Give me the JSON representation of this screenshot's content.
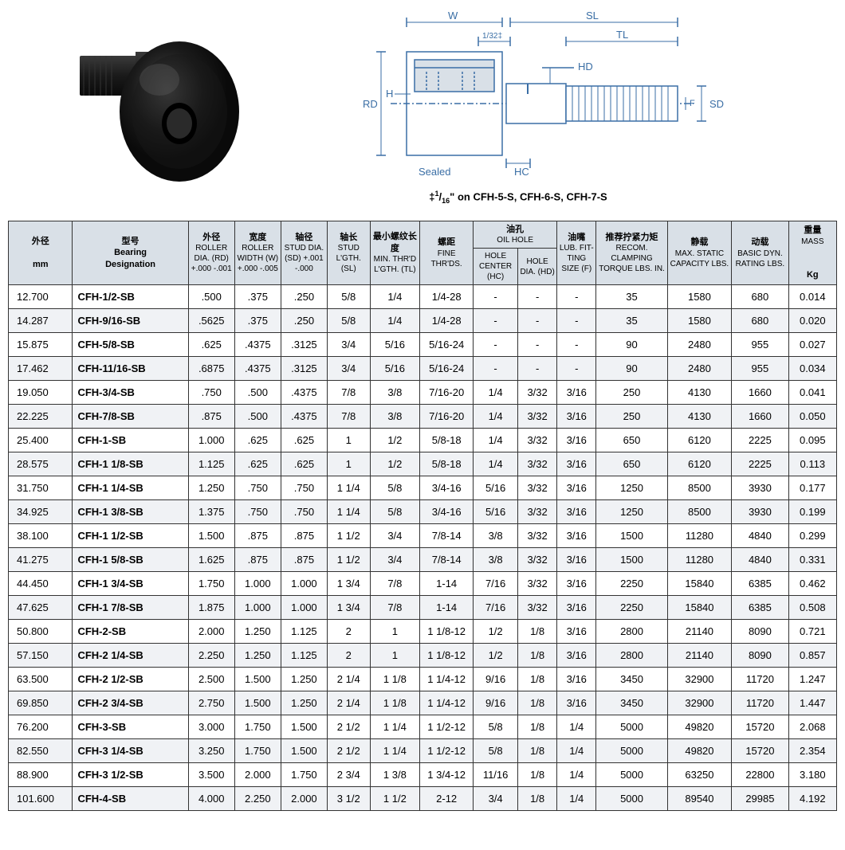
{
  "diagram": {
    "labels": {
      "W": "W",
      "SL": "SL",
      "TL": "TL",
      "RD": "RD",
      "H": "H",
      "HD": "HD",
      "SD": "SD",
      "F": "F",
      "HC": "HC",
      "Sealed": "Sealed",
      "tol": "1/32‡"
    },
    "note": "‡1/16\" on CFH-5-S, CFH-6-S, CFH-7-S",
    "line_color": "#3a6ea5",
    "text_color": "#3a6ea5"
  },
  "table": {
    "headers": {
      "od_cn": "外径",
      "od_unit": "mm",
      "des_cn": "型号",
      "des_en1": "Bearing",
      "des_en2": "Designation",
      "rd_cn": "外径",
      "rd_en": "ROLLER DIA. (RD) +.000 -.001",
      "w_cn": "宽度",
      "w_en": "ROLLER WIDTH (W) +.000 -.005",
      "sd_cn": "轴径",
      "sd_en": "STUD DIA. (SD) +.001 -.000",
      "sl_cn": "轴长",
      "sl_en": "STUD L'GTH. (SL)",
      "tl_cn": "最小螺纹长度",
      "tl_en": "MIN. THR'D L'GTH. (TL)",
      "fine_cn": "螺距",
      "fine_en": "FINE THR'DS.",
      "oil_cn": "油孔",
      "oil_en": "OIL HOLE",
      "hc_en": "HOLE CENTER (HC)",
      "hd_en": "HOLE DIA. (HD)",
      "f_cn": "油嘴",
      "f_en": "LUB. FIT-TING SIZE (F)",
      "torque_cn": "推荐拧紧力矩",
      "torque_en": "RECOM. CLAMPING TORQUE LBS. IN.",
      "static_cn": "静载",
      "static_en": "MAX. STATIC CAPACITY LBS.",
      "dyn_cn": "动载",
      "dyn_en": "BASIC DYN. RATING LBS.",
      "mass_cn": "重量",
      "mass_en": "MASS",
      "mass_unit": "Kg"
    },
    "rows": [
      {
        "od": "12.700",
        "des": "CFH-1/2-SB",
        "rd": ".500",
        "w": ".375",
        "sd": ".250",
        "sl": "5/8",
        "tl": "1/4",
        "fine": "1/4-28",
        "hc": "-",
        "hd": "-",
        "f": "-",
        "tq": "35",
        "st": "1580",
        "dy": "680",
        "m": "0.014"
      },
      {
        "od": "14.287",
        "des": "CFH-9/16-SB",
        "rd": ".5625",
        "w": ".375",
        "sd": ".250",
        "sl": "5/8",
        "tl": "1/4",
        "fine": "1/4-28",
        "hc": "-",
        "hd": "-",
        "f": "-",
        "tq": "35",
        "st": "1580",
        "dy": "680",
        "m": "0.020"
      },
      {
        "od": "15.875",
        "des": "CFH-5/8-SB",
        "rd": ".625",
        "w": ".4375",
        "sd": ".3125",
        "sl": "3/4",
        "tl": "5/16",
        "fine": "5/16-24",
        "hc": "-",
        "hd": "-",
        "f": "-",
        "tq": "90",
        "st": "2480",
        "dy": "955",
        "m": "0.027"
      },
      {
        "od": "17.462",
        "des": "CFH-11/16-SB",
        "rd": ".6875",
        "w": ".4375",
        "sd": ".3125",
        "sl": "3/4",
        "tl": "5/16",
        "fine": "5/16-24",
        "hc": "-",
        "hd": "-",
        "f": "-",
        "tq": "90",
        "st": "2480",
        "dy": "955",
        "m": "0.034"
      },
      {
        "od": "19.050",
        "des": "CFH-3/4-SB",
        "rd": ".750",
        "w": ".500",
        "sd": ".4375",
        "sl": "7/8",
        "tl": "3/8",
        "fine": "7/16-20",
        "hc": "1/4",
        "hd": "3/32",
        "f": "3/16",
        "tq": "250",
        "st": "4130",
        "dy": "1660",
        "m": "0.041"
      },
      {
        "od": "22.225",
        "des": "CFH-7/8-SB",
        "rd": ".875",
        "w": ".500",
        "sd": ".4375",
        "sl": "7/8",
        "tl": "3/8",
        "fine": "7/16-20",
        "hc": "1/4",
        "hd": "3/32",
        "f": "3/16",
        "tq": "250",
        "st": "4130",
        "dy": "1660",
        "m": "0.050"
      },
      {
        "od": "25.400",
        "des": "CFH-1-SB",
        "rd": "1.000",
        "w": ".625",
        "sd": ".625",
        "sl": "1",
        "tl": "1/2",
        "fine": "5/8-18",
        "hc": "1/4",
        "hd": "3/32",
        "f": "3/16",
        "tq": "650",
        "st": "6120",
        "dy": "2225",
        "m": "0.095"
      },
      {
        "od": "28.575",
        "des": "CFH-1 1/8-SB",
        "rd": "1.125",
        "w": ".625",
        "sd": ".625",
        "sl": "1",
        "tl": "1/2",
        "fine": "5/8-18",
        "hc": "1/4",
        "hd": "3/32",
        "f": "3/16",
        "tq": "650",
        "st": "6120",
        "dy": "2225",
        "m": "0.113"
      },
      {
        "od": "31.750",
        "des": "CFH-1 1/4-SB",
        "rd": "1.250",
        "w": ".750",
        "sd": ".750",
        "sl": "1 1/4",
        "tl": "5/8",
        "fine": "3/4-16",
        "hc": "5/16",
        "hd": "3/32",
        "f": "3/16",
        "tq": "1250",
        "st": "8500",
        "dy": "3930",
        "m": "0.177"
      },
      {
        "od": "34.925",
        "des": "CFH-1 3/8-SB",
        "rd": "1.375",
        "w": ".750",
        "sd": ".750",
        "sl": "1 1/4",
        "tl": "5/8",
        "fine": "3/4-16",
        "hc": "5/16",
        "hd": "3/32",
        "f": "3/16",
        "tq": "1250",
        "st": "8500",
        "dy": "3930",
        "m": "0.199"
      },
      {
        "od": "38.100",
        "des": "CFH-1 1/2-SB",
        "rd": "1.500",
        "w": ".875",
        "sd": ".875",
        "sl": "1 1/2",
        "tl": "3/4",
        "fine": "7/8-14",
        "hc": "3/8",
        "hd": "3/32",
        "f": "3/16",
        "tq": "1500",
        "st": "11280",
        "dy": "4840",
        "m": "0.299"
      },
      {
        "od": "41.275",
        "des": "CFH-1 5/8-SB",
        "rd": "1.625",
        "w": ".875",
        "sd": ".875",
        "sl": "1 1/2",
        "tl": "3/4",
        "fine": "7/8-14",
        "hc": "3/8",
        "hd": "3/32",
        "f": "3/16",
        "tq": "1500",
        "st": "11280",
        "dy": "4840",
        "m": "0.331"
      },
      {
        "od": "44.450",
        "des": "CFH-1 3/4-SB",
        "rd": "1.750",
        "w": "1.000",
        "sd": "1.000",
        "sl": "1 3/4",
        "tl": "7/8",
        "fine": "1-14",
        "hc": "7/16",
        "hd": "3/32",
        "f": "3/16",
        "tq": "2250",
        "st": "15840",
        "dy": "6385",
        "m": "0.462"
      },
      {
        "od": "47.625",
        "des": "CFH-1 7/8-SB",
        "rd": "1.875",
        "w": "1.000",
        "sd": "1.000",
        "sl": "1 3/4",
        "tl": "7/8",
        "fine": "1-14",
        "hc": "7/16",
        "hd": "3/32",
        "f": "3/16",
        "tq": "2250",
        "st": "15840",
        "dy": "6385",
        "m": "0.508"
      },
      {
        "od": "50.800",
        "des": "CFH-2-SB",
        "rd": "2.000",
        "w": "1.250",
        "sd": "1.125",
        "sl": "2",
        "tl": "1",
        "fine": "1 1/8-12",
        "hc": "1/2",
        "hd": "1/8",
        "f": "3/16",
        "tq": "2800",
        "st": "21140",
        "dy": "8090",
        "m": "0.721"
      },
      {
        "od": "57.150",
        "des": "CFH-2 1/4-SB",
        "rd": "2.250",
        "w": "1.250",
        "sd": "1.125",
        "sl": "2",
        "tl": "1",
        "fine": "1 1/8-12",
        "hc": "1/2",
        "hd": "1/8",
        "f": "3/16",
        "tq": "2800",
        "st": "21140",
        "dy": "8090",
        "m": "0.857"
      },
      {
        "od": "63.500",
        "des": "CFH-2 1/2-SB",
        "rd": "2.500",
        "w": "1.500",
        "sd": "1.250",
        "sl": "2 1/4",
        "tl": "1 1/8",
        "fine": "1 1/4-12",
        "hc": "9/16",
        "hd": "1/8",
        "f": "3/16",
        "tq": "3450",
        "st": "32900",
        "dy": "11720",
        "m": "1.247"
      },
      {
        "od": "69.850",
        "des": "CFH-2 3/4-SB",
        "rd": "2.750",
        "w": "1.500",
        "sd": "1.250",
        "sl": "2 1/4",
        "tl": "1 1/8",
        "fine": "1 1/4-12",
        "hc": "9/16",
        "hd": "1/8",
        "f": "3/16",
        "tq": "3450",
        "st": "32900",
        "dy": "11720",
        "m": "1.447"
      },
      {
        "od": "76.200",
        "des": "CFH-3-SB",
        "rd": "3.000",
        "w": "1.750",
        "sd": "1.500",
        "sl": "2 1/2",
        "tl": "1 1/4",
        "fine": "1 1/2-12",
        "hc": "5/8",
        "hd": "1/8",
        "f": "1/4",
        "tq": "5000",
        "st": "49820",
        "dy": "15720",
        "m": "2.068"
      },
      {
        "od": "82.550",
        "des": "CFH-3 1/4-SB",
        "rd": "3.250",
        "w": "1.750",
        "sd": "1.500",
        "sl": "2 1/2",
        "tl": "1 1/4",
        "fine": "1 1/2-12",
        "hc": "5/8",
        "hd": "1/8",
        "f": "1/4",
        "tq": "5000",
        "st": "49820",
        "dy": "15720",
        "m": "2.354"
      },
      {
        "od": "88.900",
        "des": "CFH-3 1/2-SB",
        "rd": "3.500",
        "w": "2.000",
        "sd": "1.750",
        "sl": "2 3/4",
        "tl": "1 3/8",
        "fine": "1 3/4-12",
        "hc": "11/16",
        "hd": "1/8",
        "f": "1/4",
        "tq": "5000",
        "st": "63250",
        "dy": "22800",
        "m": "3.180"
      },
      {
        "od": "101.600",
        "des": "CFH-4-SB",
        "rd": "4.000",
        "w": "2.250",
        "sd": "2.000",
        "sl": "3 1/2",
        "tl": "1 1/2",
        "fine": "2-12",
        "hc": "3/4",
        "hd": "1/8",
        "f": "1/4",
        "tq": "5000",
        "st": "89540",
        "dy": "29985",
        "m": "4.192"
      }
    ]
  }
}
